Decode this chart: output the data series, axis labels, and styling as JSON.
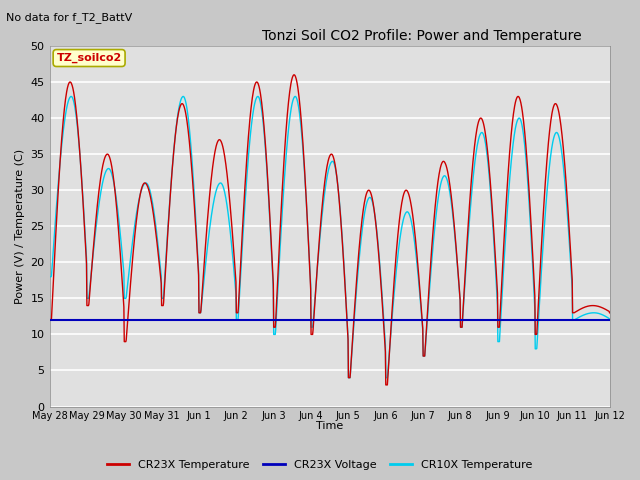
{
  "title": "Tonzi Soil CO2 Profile: Power and Temperature",
  "no_data_label": "No data for f_T2_BattV",
  "ylabel": "Power (V) / Temperature (C)",
  "xlabel": "Time",
  "ylim": [
    0,
    50
  ],
  "yticks": [
    0,
    5,
    10,
    15,
    20,
    25,
    30,
    35,
    40,
    45,
    50
  ],
  "fig_bg_color": "#c8c8c8",
  "plot_bg_color": "#e0e0e0",
  "grid_color": "#ffffff",
  "cr23x_temp_color": "#cc0000",
  "cr23x_volt_color": "#0000bb",
  "cr10x_temp_color": "#00ccee",
  "legend_entries": [
    "CR23X Temperature",
    "CR23X Voltage",
    "CR10X Temperature"
  ],
  "box_label": "TZ_soilco2",
  "box_facecolor": "#ffffcc",
  "box_edgecolor": "#aaaa00",
  "x_tick_labels": [
    "May 28",
    "May 29",
    "May 30",
    "May 31",
    "Jun 1",
    "Jun 2",
    "Jun 3",
    "Jun 4",
    "Jun 5",
    "Jun 6",
    "Jun 7",
    "Jun 8",
    "Jun 9",
    "Jun 10",
    "Jun 11",
    "Jun 12"
  ]
}
